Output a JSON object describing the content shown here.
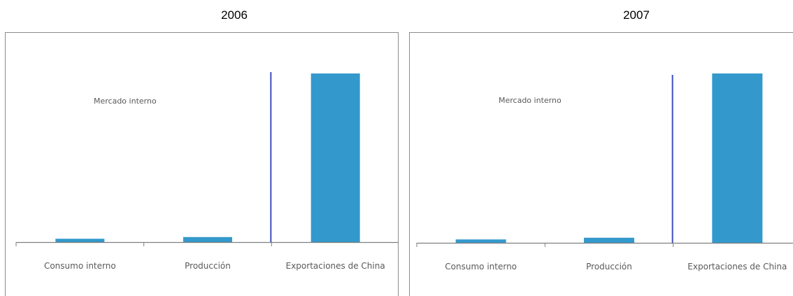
{
  "chart_data": [
    {
      "type": "bar",
      "title": "2006",
      "categories": [
        "Consumo interno",
        "Producción",
        "Exportaciones de China"
      ],
      "values": [
        2,
        3,
        100
      ],
      "annotation": "Mercado interno",
      "colors": {
        "bar": "#3399cc",
        "divider": "#3b4fbf",
        "axis": "#7f7f7f"
      }
    },
    {
      "type": "bar",
      "title": "2007",
      "categories": [
        "Consumo interno",
        "Producción",
        "Exportaciones de China"
      ],
      "values": [
        2,
        3,
        100
      ],
      "annotation": "Mercado interno",
      "colors": {
        "bar": "#3399cc",
        "divider": "#3b4fbf",
        "axis": "#7f7f7f"
      }
    }
  ]
}
